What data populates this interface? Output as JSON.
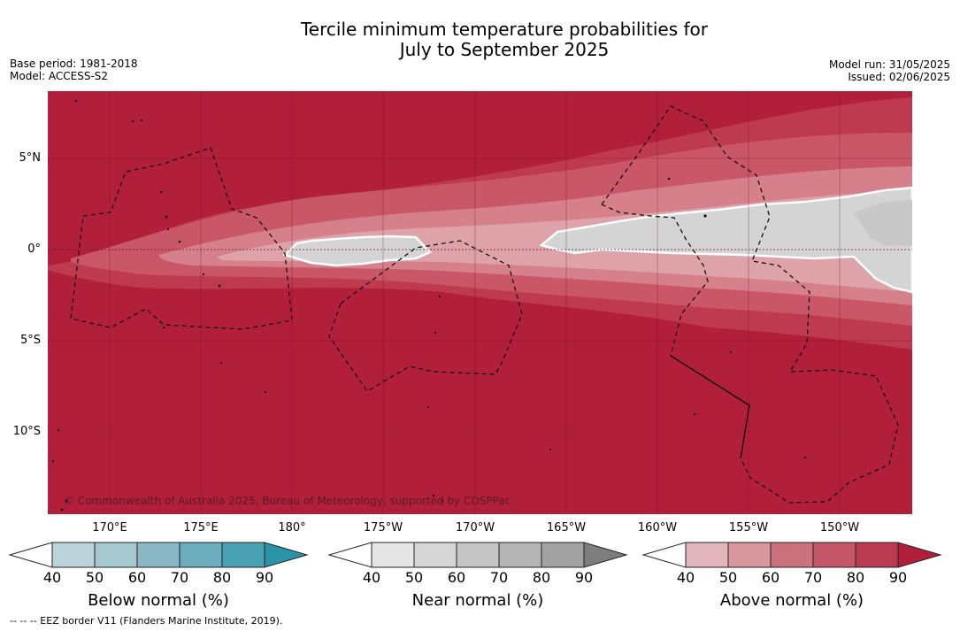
{
  "title_line1": "Tercile minimum temperature probabilities for",
  "title_line2": "July to September 2025",
  "base_period": "Base period: 1981-2018",
  "model": "Model: ACCESS-S2",
  "model_run": "Model run: 31/05/2025",
  "issued": "Issued: 02/06/2025",
  "copyright": "© Commonwealth of Australia 2025, Bureau of Meteorology, supported by COSPPac",
  "eez_note": "-- -- -- EEZ border V11 (Flanders Marine Institute, 2019).",
  "map": {
    "lon_labels": [
      "170°E",
      "175°E",
      "180°",
      "175°W",
      "170°W",
      "165°W",
      "160°W",
      "155°W",
      "150°W"
    ],
    "lat_labels": [
      "5°N",
      "0°",
      "5°S",
      "10°S"
    ],
    "colors": {
      "above_90": "#b21f3a",
      "above_80": "#be3a4f",
      "above_70": "#c95767",
      "above_60": "#d5808a",
      "above_50": "#dea2a9",
      "near_normal": "#d4d4d4",
      "near_60": "#c8c8c8"
    }
  },
  "colorbars": [
    {
      "label": "Below normal (%)",
      "ticks": [
        "40",
        "50",
        "60",
        "70",
        "80",
        "90"
      ],
      "colors": [
        "#bdd3db",
        "#a6c8cf",
        "#8ab9c5",
        "#6daebe",
        "#4aa1b3",
        "#2a93a7"
      ]
    },
    {
      "label": "Near normal (%)",
      "ticks": [
        "40",
        "50",
        "60",
        "70",
        "80",
        "90"
      ],
      "colors": [
        "#e6e6e6",
        "#d6d6d6",
        "#c6c6c6",
        "#b5b5b5",
        "#a2a2a2",
        "#7e7e7e"
      ]
    },
    {
      "label": "Above normal (%)",
      "ticks": [
        "40",
        "50",
        "60",
        "70",
        "80",
        "90"
      ],
      "colors": [
        "#e2b6bc",
        "#d8969e",
        "#cc727f",
        "#c45667",
        "#ba3a4f",
        "#b21f3a"
      ]
    }
  ]
}
